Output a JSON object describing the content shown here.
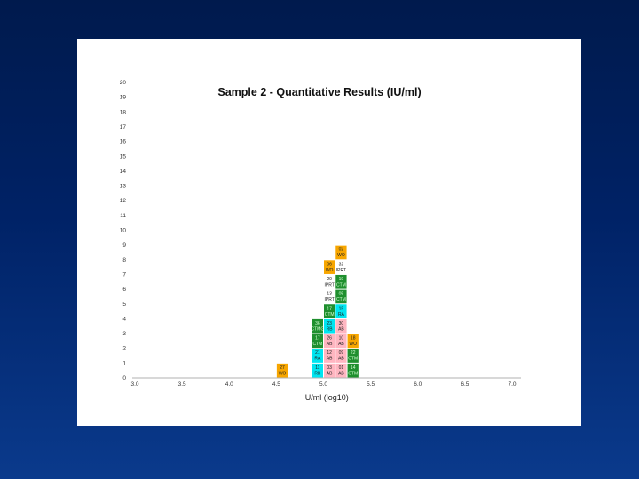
{
  "slide": {
    "background": "#002266",
    "panel": "#ffffff"
  },
  "chart_data": {
    "type": "bar",
    "title": "Sample 2 - Quantitative Results (IU/ml)",
    "xlabel": "IU/ml (log10)",
    "ylabel": "",
    "xlim": [
      3.0,
      7.0
    ],
    "ylim": [
      0,
      20
    ],
    "x_ticks": [
      "3.0",
      "3.5",
      "4.0",
      "4.5",
      "5.0",
      "5.5",
      "6.0",
      "6.5",
      "7.0"
    ],
    "y_ticks": [
      "0",
      "1",
      "2",
      "3",
      "4",
      "5",
      "6",
      "7",
      "8",
      "9",
      "10",
      "11",
      "12",
      "13",
      "14",
      "15",
      "16",
      "17",
      "18",
      "19",
      "20"
    ],
    "bin_width": 0.125,
    "palette": {
      "orange": "#f7a600",
      "cyan": "#00e5f0",
      "pink": "#ffb6c1",
      "green": "#1f8f2e",
      "white": "#ffffff"
    },
    "stacks": [
      {
        "x_start": 4.5,
        "cells": [
          {
            "line1": "27",
            "line2": "WO",
            "color": "orange"
          }
        ]
      },
      {
        "x_start": 4.875,
        "cells": [
          {
            "line1": "11",
            "line2": "RB",
            "color": "cyan"
          },
          {
            "line1": "21",
            "line2": "RA",
            "color": "cyan"
          },
          {
            "line1": "17",
            "line2": "CTM",
            "color": "green"
          },
          {
            "line1": "36",
            "line2": "CTMG",
            "color": "green"
          }
        ]
      },
      {
        "x_start": 5.0,
        "cells": [
          {
            "line1": "03",
            "line2": "AB",
            "color": "pink"
          },
          {
            "line1": "12",
            "line2": "AB",
            "color": "pink"
          },
          {
            "line1": "26",
            "line2": "AB",
            "color": "pink"
          },
          {
            "line1": "23",
            "line2": "RB",
            "color": "cyan"
          },
          {
            "line1": "17",
            "line2": "CTM",
            "color": "green"
          },
          {
            "line1": "13",
            "line2": "IPRT",
            "color": "white"
          },
          {
            "line1": "20",
            "line2": "IPRT",
            "color": "white"
          },
          {
            "line1": "06",
            "line2": "WO",
            "color": "orange"
          }
        ]
      },
      {
        "x_start": 5.125,
        "cells": [
          {
            "line1": "01",
            "line2": "AB",
            "color": "pink"
          },
          {
            "line1": "09",
            "line2": "AB",
            "color": "pink"
          },
          {
            "line1": "10",
            "line2": "AB",
            "color": "pink"
          },
          {
            "line1": "30",
            "line2": "AB",
            "color": "pink"
          },
          {
            "line1": "15",
            "line2": "RA",
            "color": "cyan"
          },
          {
            "line1": "05",
            "line2": "CTM",
            "color": "green"
          },
          {
            "line1": "19",
            "line2": "CTM",
            "color": "green"
          },
          {
            "line1": "32",
            "line2": "IPRT",
            "color": "white"
          },
          {
            "line1": "02",
            "line2": "WO",
            "color": "orange"
          }
        ]
      },
      {
        "x_start": 5.25,
        "cells": [
          {
            "line1": "14",
            "line2": "CTM",
            "color": "green"
          },
          {
            "line1": "22",
            "line2": "CTM",
            "color": "green"
          },
          {
            "line1": "18",
            "line2": "WO",
            "color": "orange"
          }
        ]
      }
    ]
  }
}
